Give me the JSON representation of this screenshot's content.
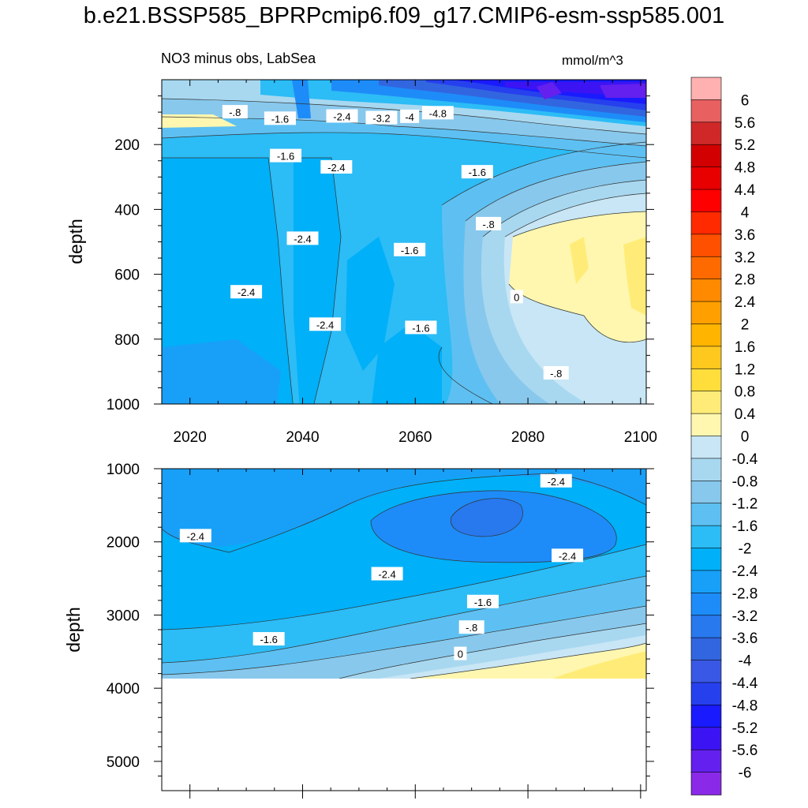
{
  "title": "b.e21.BSSP585_BPRPcmip6.f09_g17.CMIP6-esm-ssp585.001",
  "chart_data": [
    {
      "type": "heatmap",
      "panel": "upper",
      "title": "NO3 minus obs, LabSea",
      "units": "mmol/m^3",
      "xlabel": "",
      "ylabel": "depth",
      "xlim": [
        2015,
        2101
      ],
      "ylim": [
        1000,
        0
      ],
      "x_ticks": [
        2020,
        2040,
        2060,
        2080,
        2100
      ],
      "x_tick_labels": [
        "2020",
        "2040",
        "2060",
        "2080",
        "2100"
      ],
      "y_ticks": [
        200,
        400,
        600,
        800,
        1000
      ],
      "y_tick_labels": [
        "200",
        "400",
        "600",
        "800",
        "1000"
      ],
      "contour_labels": [
        {
          "text": "-.8",
          "x": 2028,
          "y": 100
        },
        {
          "text": "-1.6",
          "x": 2036,
          "y": 120
        },
        {
          "text": "-2.4",
          "x": 2047,
          "y": 113
        },
        {
          "text": "-3.2",
          "x": 2054,
          "y": 118
        },
        {
          "text": "-4",
          "x": 2059,
          "y": 114
        },
        {
          "text": "-4.8",
          "x": 2064,
          "y": 103
        },
        {
          "text": "-1.6",
          "x": 2037,
          "y": 235
        },
        {
          "text": "-2.4",
          "x": 2046,
          "y": 270
        },
        {
          "text": "-1.6",
          "x": 2071,
          "y": 285
        },
        {
          "text": "-.8",
          "x": 2073,
          "y": 445
        },
        {
          "text": "-2.4",
          "x": 2040,
          "y": 490
        },
        {
          "text": "-1.6",
          "x": 2059,
          "y": 525
        },
        {
          "text": "-2.4",
          "x": 2030,
          "y": 655
        },
        {
          "text": "0",
          "x": 2078,
          "y": 670
        },
        {
          "text": "-2.4",
          "x": 2044,
          "y": 755
        },
        {
          "text": "-1.6",
          "x": 2061,
          "y": 765
        },
        {
          "text": "-.8",
          "x": 2085,
          "y": 905
        }
      ]
    },
    {
      "type": "heatmap",
      "panel": "lower",
      "xlabel": "",
      "ylabel": "depth",
      "xlim": [
        2015,
        2101
      ],
      "ylim": [
        5400,
        1000
      ],
      "data_max_depth": 3870,
      "y_ticks": [
        1000,
        2000,
        3000,
        4000,
        5000
      ],
      "y_tick_labels": [
        "1000",
        "2000",
        "3000",
        "4000",
        "5000"
      ],
      "contour_labels": [
        {
          "text": "-2.4",
          "x": 2085,
          "y": 1170
        },
        {
          "text": "-2.4",
          "x": 2021,
          "y": 1920
        },
        {
          "text": "-2.4",
          "x": 2087,
          "y": 2190
        },
        {
          "text": "-2.4",
          "x": 2055,
          "y": 2440
        },
        {
          "text": "-1.6",
          "x": 2072,
          "y": 2820
        },
        {
          "text": "-.8",
          "x": 2070,
          "y": 3170
        },
        {
          "text": "-1.6",
          "x": 2034,
          "y": 3330
        },
        {
          "text": "0",
          "x": 2068,
          "y": 3530
        }
      ]
    }
  ],
  "colorbar": {
    "labels": [
      "6",
      "5.6",
      "5.2",
      "4.8",
      "4.4",
      "4",
      "3.6",
      "3.2",
      "2.8",
      "2.4",
      "2",
      "1.6",
      "1.2",
      "0.8",
      "0.4",
      "0",
      "-0.4",
      "-0.8",
      "-1.2",
      "-1.6",
      "-2",
      "-2.4",
      "-2.8",
      "-3.2",
      "-3.6",
      "-4",
      "-4.4",
      "-4.8",
      "-5.2",
      "-5.6",
      "-6"
    ],
    "colors": [
      "#ffb0b0",
      "#e86060",
      "#d02828",
      "#d20000",
      "#e80000",
      "#ff0000",
      "#ff2a00",
      "#ff5000",
      "#ff6a00",
      "#ff8a00",
      "#ffa000",
      "#ffb400",
      "#ffc81e",
      "#ffde3c",
      "#ffec78",
      "#fff7b0",
      "#c8e6f5",
      "#a8d8f0",
      "#88c8ec",
      "#5ec0f2",
      "#2cbcf6",
      "#00b0f8",
      "#18a0f8",
      "#1e8cf8",
      "#2878ee",
      "#3266e0",
      "#3a58e6",
      "#2640ee",
      "#1a1aff",
      "#3c14f4",
      "#6420ee",
      "#8a2ae8"
    ]
  }
}
